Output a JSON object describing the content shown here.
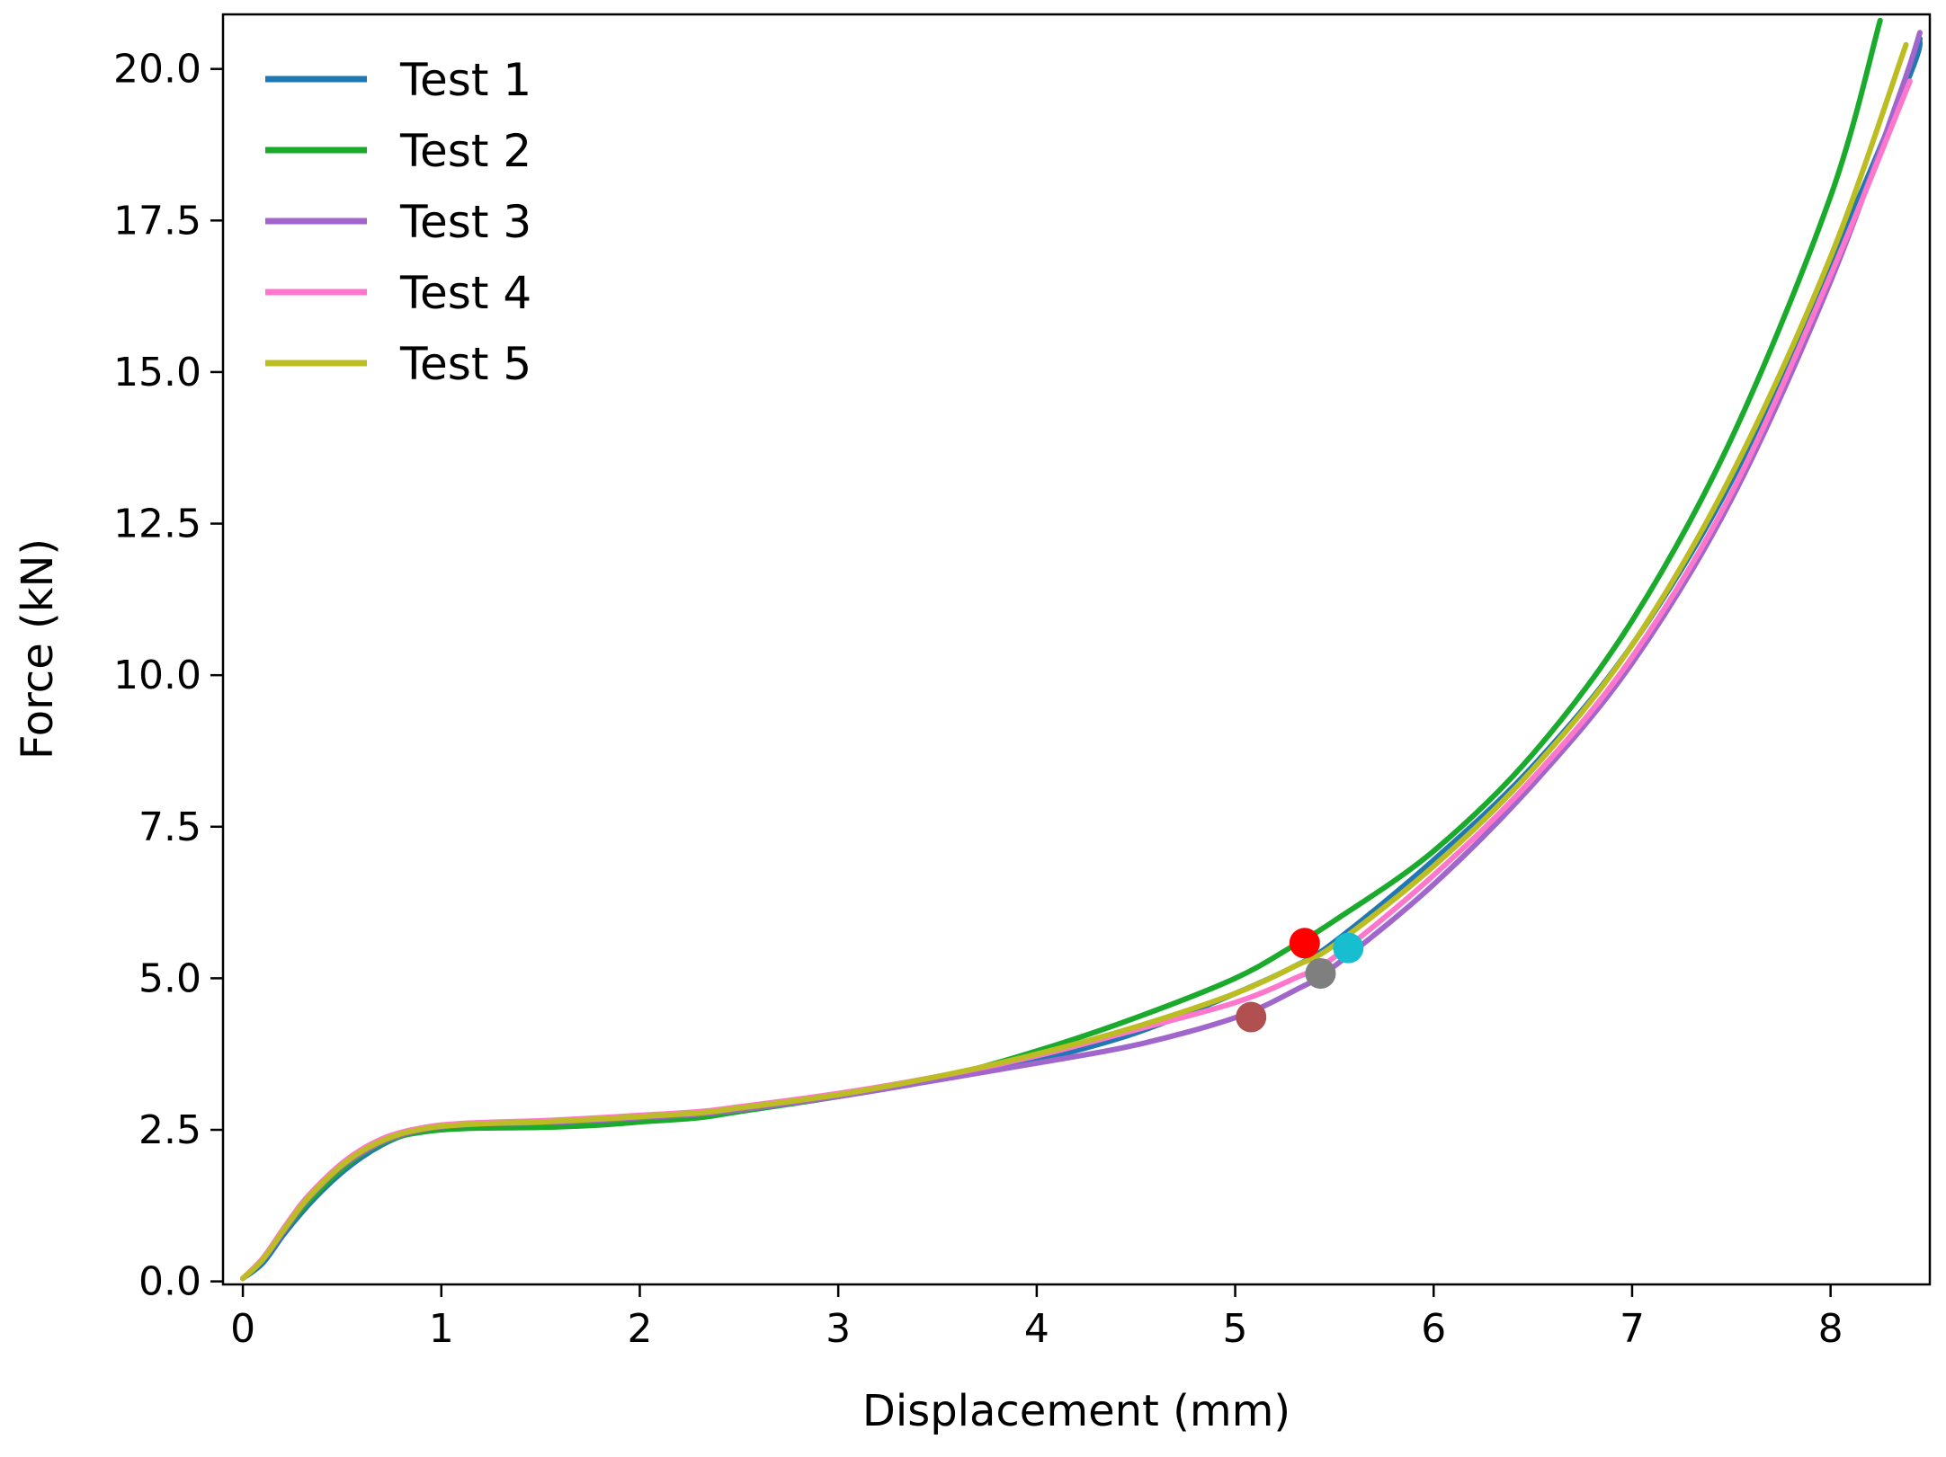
{
  "chart_data": {
    "type": "line",
    "title": "",
    "xlabel": "Displacement (mm)",
    "ylabel": "Force (kN)",
    "xlim": [
      -0.1,
      8.5
    ],
    "ylim": [
      -0.05,
      20.9
    ],
    "xticks": [
      0,
      1,
      2,
      3,
      4,
      5,
      6,
      7,
      8
    ],
    "xtick_labels": [
      "0",
      "1",
      "2",
      "3",
      "4",
      "5",
      "6",
      "7",
      "8"
    ],
    "yticks": [
      0.0,
      2.5,
      5.0,
      7.5,
      10.0,
      12.5,
      15.0,
      17.5,
      20.0
    ],
    "ytick_labels": [
      "0.0",
      "2.5",
      "5.0",
      "7.5",
      "10.0",
      "12.5",
      "15.0",
      "17.5",
      "20.0"
    ],
    "grid": false,
    "legend_position": "upper-left",
    "series": [
      {
        "name": "Test 1",
        "color": "#1f77b4",
        "x": [
          0,
          0.1,
          0.2,
          0.3,
          0.4,
          0.5,
          0.6,
          0.7,
          0.8,
          0.9,
          1.0,
          1.2,
          1.5,
          1.8,
          2.0,
          2.3,
          2.5,
          3.0,
          3.5,
          4.0,
          4.5,
          5.0,
          5.3,
          5.5,
          6.0,
          6.5,
          7.0,
          7.5,
          8.0,
          8.4,
          8.45
        ],
        "y": [
          0.05,
          0.3,
          0.75,
          1.15,
          1.5,
          1.8,
          2.05,
          2.25,
          2.4,
          2.48,
          2.52,
          2.56,
          2.58,
          2.62,
          2.66,
          2.73,
          2.82,
          3.05,
          3.35,
          3.65,
          4.1,
          4.75,
          5.2,
          5.6,
          6.95,
          8.5,
          10.5,
          13.2,
          16.8,
          19.9,
          20.5
        ]
      },
      {
        "name": "Test 2",
        "color": "#1aaa2c",
        "x": [
          0,
          0.1,
          0.2,
          0.3,
          0.4,
          0.5,
          0.6,
          0.7,
          0.8,
          0.9,
          1.0,
          1.2,
          1.5,
          1.8,
          2.0,
          2.3,
          2.5,
          3.0,
          3.5,
          4.0,
          4.5,
          5.0,
          5.3,
          5.5,
          6.0,
          6.5,
          7.0,
          7.5,
          8.0,
          8.25
        ],
        "y": [
          0.05,
          0.35,
          0.8,
          1.2,
          1.55,
          1.85,
          2.1,
          2.28,
          2.4,
          2.46,
          2.5,
          2.53,
          2.54,
          2.58,
          2.63,
          2.7,
          2.8,
          3.05,
          3.35,
          3.8,
          4.35,
          5.0,
          5.55,
          5.95,
          7.1,
          8.7,
          10.9,
          13.9,
          17.9,
          20.8
        ]
      },
      {
        "name": "Test 3",
        "color": "#a066cc",
        "x": [
          0,
          0.1,
          0.2,
          0.3,
          0.4,
          0.5,
          0.6,
          0.7,
          0.8,
          0.9,
          1.0,
          1.2,
          1.5,
          1.8,
          2.0,
          2.3,
          2.5,
          3.0,
          3.5,
          4.0,
          4.5,
          5.0,
          5.3,
          5.5,
          6.0,
          6.5,
          7.0,
          7.5,
          8.0,
          8.35,
          8.45
        ],
        "y": [
          0.05,
          0.35,
          0.8,
          1.25,
          1.6,
          1.9,
          2.12,
          2.3,
          2.42,
          2.5,
          2.55,
          2.6,
          2.62,
          2.66,
          2.7,
          2.76,
          2.83,
          3.05,
          3.32,
          3.6,
          3.9,
          4.35,
          4.8,
          5.2,
          6.55,
          8.2,
          10.2,
          12.9,
          16.5,
          19.6,
          20.6
        ]
      },
      {
        "name": "Test 4",
        "color": "#ff77cc",
        "x": [
          0,
          0.1,
          0.2,
          0.3,
          0.4,
          0.5,
          0.6,
          0.7,
          0.8,
          0.9,
          1.0,
          1.2,
          1.5,
          1.8,
          2.0,
          2.3,
          2.5,
          3.0,
          3.5,
          4.0,
          4.5,
          5.0,
          5.3,
          5.5,
          6.0,
          6.5,
          7.0,
          7.5,
          8.0,
          8.4
        ],
        "y": [
          0.05,
          0.38,
          0.85,
          1.3,
          1.65,
          1.95,
          2.18,
          2.35,
          2.46,
          2.53,
          2.58,
          2.62,
          2.65,
          2.7,
          2.74,
          2.8,
          2.88,
          3.1,
          3.38,
          3.72,
          4.15,
          4.6,
          5.0,
          5.35,
          6.7,
          8.3,
          10.3,
          13.0,
          16.6,
          19.8
        ]
      },
      {
        "name": "Test 5",
        "color": "#bcbd22",
        "x": [
          0,
          0.1,
          0.2,
          0.3,
          0.4,
          0.5,
          0.6,
          0.7,
          0.8,
          0.9,
          1.0,
          1.2,
          1.5,
          1.8,
          2.0,
          2.3,
          2.5,
          3.0,
          3.5,
          4.0,
          4.5,
          5.0,
          5.3,
          5.5,
          6.0,
          6.5,
          7.0,
          7.5,
          8.0,
          8.38
        ],
        "y": [
          0.05,
          0.36,
          0.82,
          1.27,
          1.62,
          1.92,
          2.15,
          2.32,
          2.44,
          2.51,
          2.56,
          2.6,
          2.63,
          2.68,
          2.72,
          2.78,
          2.86,
          3.08,
          3.38,
          3.75,
          4.2,
          4.75,
          5.2,
          5.55,
          6.85,
          8.45,
          10.5,
          13.3,
          16.9,
          20.4
        ]
      }
    ],
    "markers": [
      {
        "x": 5.35,
        "y": 5.58,
        "color": "#ff0000"
      },
      {
        "x": 5.57,
        "y": 5.5,
        "color": "#17becf"
      },
      {
        "x": 5.43,
        "y": 5.08,
        "color": "#7f7f7f"
      },
      {
        "x": 5.08,
        "y": 4.36,
        "color": "#b05050"
      }
    ]
  }
}
